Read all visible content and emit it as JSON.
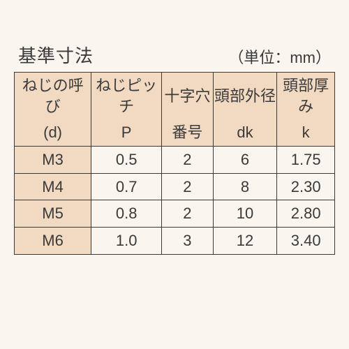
{
  "title": "基準寸法",
  "unit": "（単位：mm）",
  "table": {
    "columns": [
      {
        "top": "ねじの呼び",
        "bot": "(d)"
      },
      {
        "top": "ねじピッチ",
        "bot": "P"
      },
      {
        "top": "十字穴",
        "bot": "番号"
      },
      {
        "top": "頭部外径",
        "bot": "dk"
      },
      {
        "top": "頭部厚み",
        "bot": "k"
      }
    ],
    "rows": [
      {
        "label": "M3",
        "cells": [
          "0.5",
          "2",
          "6",
          "1.75"
        ]
      },
      {
        "label": "M4",
        "cells": [
          "0.7",
          "2",
          "8",
          "2.30"
        ]
      },
      {
        "label": "M5",
        "cells": [
          "0.8",
          "2",
          "10",
          "2.80"
        ]
      },
      {
        "label": "M6",
        "cells": [
          "1.0",
          "3",
          "12",
          "3.40"
        ]
      }
    ]
  },
  "colors": {
    "background": "#faf5ee",
    "header_fill": "#f2d9c2",
    "border": "#3a3a3a",
    "text": "#3a3a3a"
  },
  "fontsize": {
    "title": 26,
    "unit": 22,
    "cell": 22
  }
}
